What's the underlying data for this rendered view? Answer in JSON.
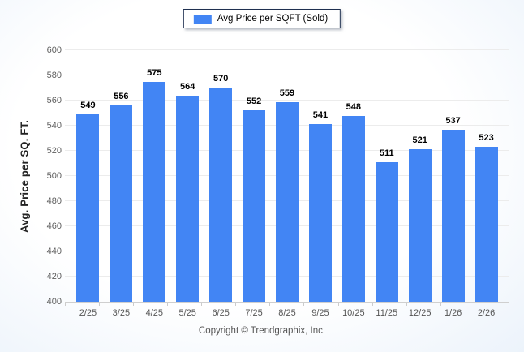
{
  "legend": {
    "label": "Avg Price per SQFT (Sold)"
  },
  "footer": {
    "text": "Copyright © Trendgraphix, Inc."
  },
  "colors": {
    "bar": "#4285f4",
    "gridline": "#ececec",
    "axis_line": "#cfcfcf",
    "legend_border": "#1f3050",
    "tick_text": "#5f5f5f"
  },
  "chart_data": {
    "type": "bar",
    "title": "",
    "xlabel": "",
    "ylabel": "Avg. Price per SQ. FT.",
    "categories": [
      "2/25",
      "3/25",
      "4/25",
      "5/25",
      "6/25",
      "7/25",
      "8/25",
      "9/25",
      "10/25",
      "11/25",
      "12/25",
      "1/26",
      "2/26"
    ],
    "values": [
      549,
      556,
      575,
      564,
      570,
      552,
      559,
      541,
      548,
      511,
      521,
      537,
      523
    ],
    "series": [
      {
        "name": "Avg Price per SQFT (Sold)",
        "values": [
          549,
          556,
          575,
          564,
          570,
          552,
          559,
          541,
          548,
          511,
          521,
          537,
          523
        ]
      }
    ],
    "ylim": [
      400,
      600
    ],
    "yticks": [
      400,
      420,
      440,
      460,
      480,
      500,
      520,
      540,
      560,
      580,
      600
    ],
    "grid": "horizontal",
    "legend_position": "top-center",
    "bar_color": "#4285f4",
    "value_labels_shown": true
  }
}
